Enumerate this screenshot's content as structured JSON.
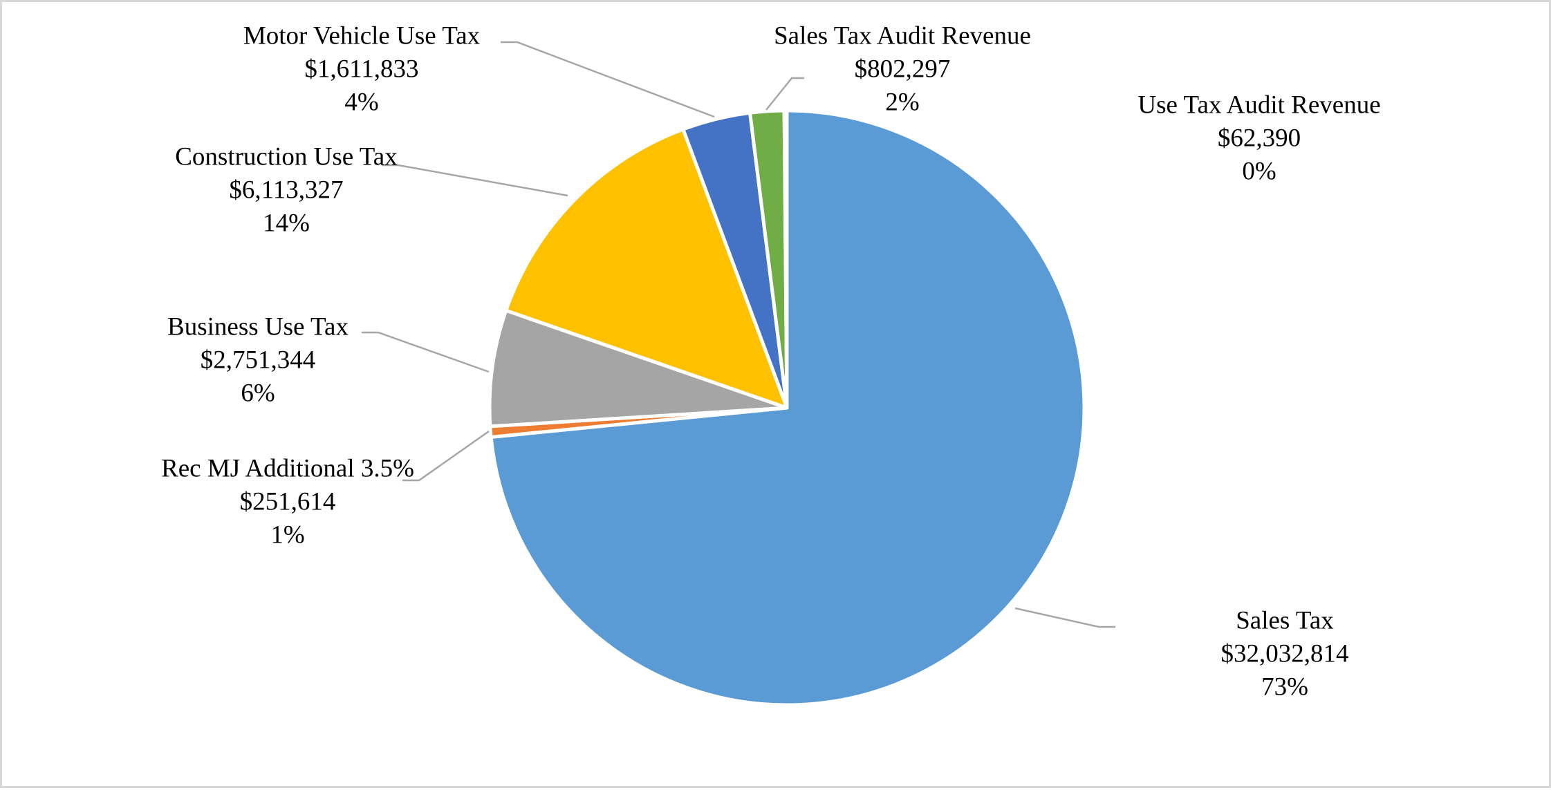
{
  "chart_data": {
    "type": "pie",
    "start_angle_deg": 0,
    "direction": "clockwise",
    "slices": [
      {
        "name": "Sales Tax",
        "value": 32032814,
        "value_label": "$32,032,814",
        "percent_label": "73%",
        "color": "#5b9bd5"
      },
      {
        "name": "Rec MJ Additional 3.5%",
        "value": 251614,
        "value_label": "$251,614",
        "percent_label": "1%",
        "color": "#ed7d31"
      },
      {
        "name": "Business Use Tax",
        "value": 2751344,
        "value_label": "$2,751,344",
        "percent_label": "6%",
        "color": "#a5a5a5"
      },
      {
        "name": "Construction Use Tax",
        "value": 6113327,
        "value_label": "$6,113,327",
        "percent_label": "14%",
        "color": "#ffc000"
      },
      {
        "name": "Motor Vehicle Use Tax",
        "value": 1611833,
        "value_label": "$1,611,833",
        "percent_label": "4%",
        "color": "#4472c4"
      },
      {
        "name": "Sales Tax Audit Revenue",
        "value": 802297,
        "value_label": "$802,297",
        "percent_label": "2%",
        "color": "#70ad47"
      },
      {
        "name": "Use Tax Audit Revenue",
        "value": 62390,
        "value_label": "$62,390",
        "percent_label": "0%",
        "color": "#264478"
      }
    ],
    "leader_line_color": "#a6a6a6",
    "slice_border_color": "#ffffff"
  }
}
